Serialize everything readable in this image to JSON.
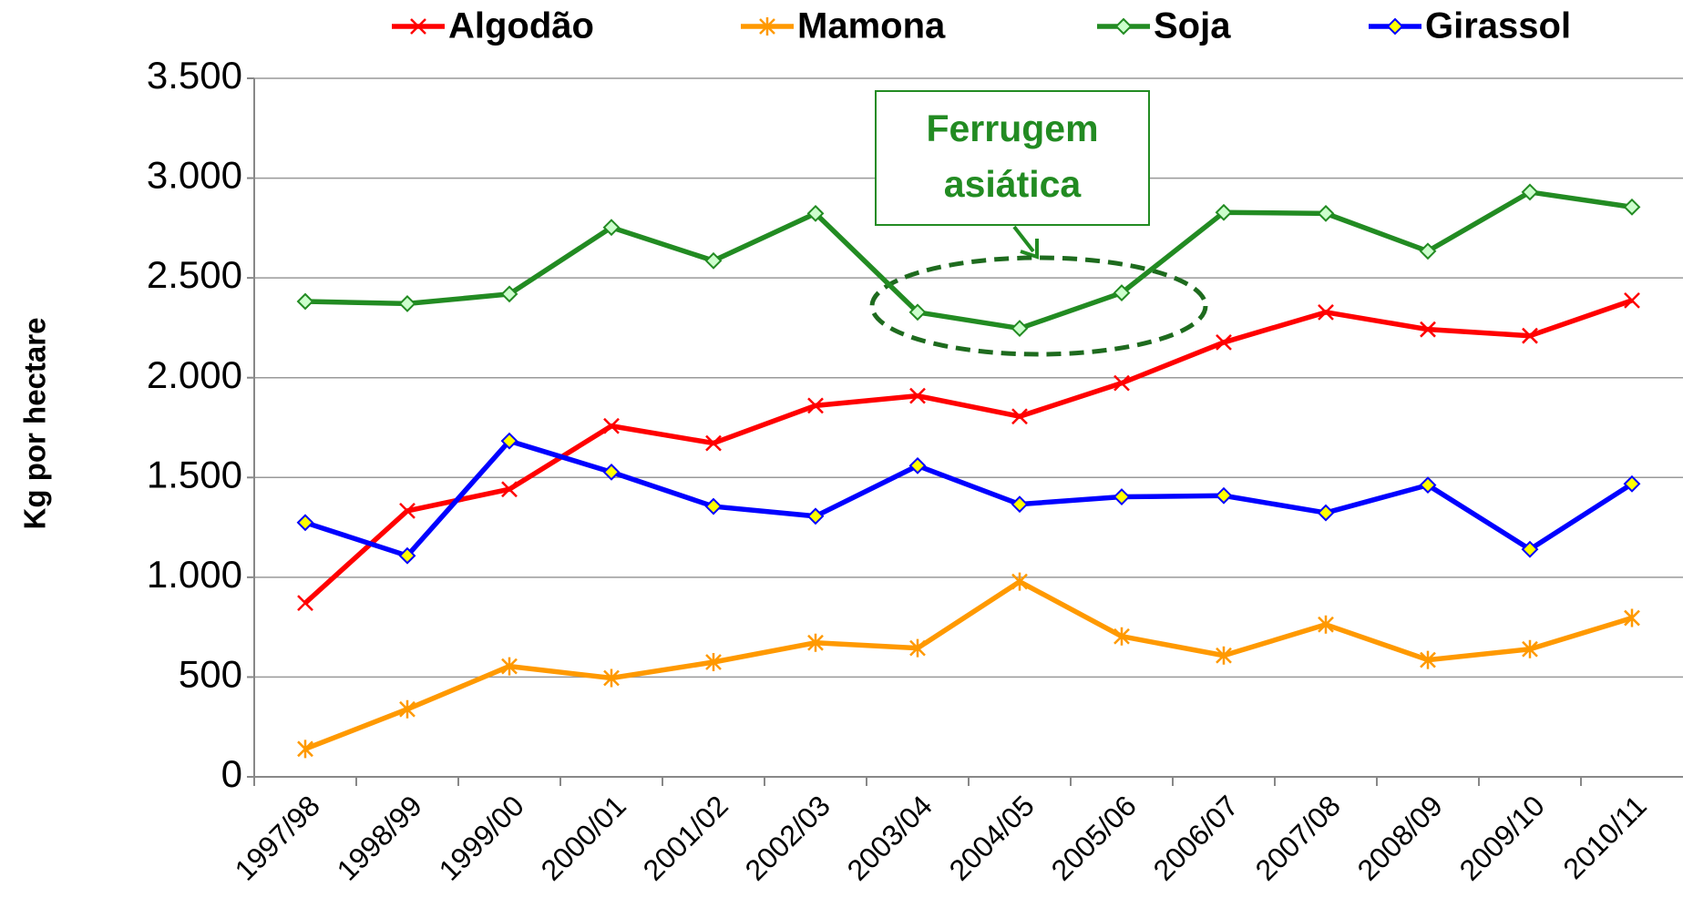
{
  "chart_data": {
    "type": "line",
    "y_label": "Kg por hectare",
    "annotation": [
      "Ferrugem",
      "asiática"
    ],
    "categories": [
      "1997/98",
      "1998/99",
      "1999/00",
      "2000/01",
      "2001/02",
      "2002/03",
      "2003/04",
      "2004/05",
      "2005/06",
      "2006/07",
      "2007/08",
      "2008/09",
      "2009/10",
      "2010/11"
    ],
    "series": [
      {
        "name": "Algodão",
        "color": "#ff0000",
        "marker": "x",
        "values": [
          871,
          1333,
          1441,
          1758,
          1672,
          1860,
          1909,
          1806,
          1973,
          2177,
          2328,
          2242,
          2210,
          2387
        ]
      },
      {
        "name": "Mamona",
        "color": "#ff9900",
        "marker": "star",
        "values": [
          140,
          339,
          554,
          495,
          575,
          672,
          645,
          978,
          704,
          608,
          763,
          586,
          640,
          796
        ]
      },
      {
        "name": "Soja",
        "color": "#228b22",
        "marker": "diamond",
        "marker_fill": "#ccffcc",
        "values": [
          2382,
          2371,
          2419,
          2753,
          2586,
          2823,
          2328,
          2247,
          2425,
          2828,
          2823,
          2634,
          2930,
          2855
        ]
      },
      {
        "name": "Girassol",
        "color": "#0000ff",
        "marker": "diamond",
        "marker_fill": "#ffff00",
        "values": [
          1274,
          1108,
          1683,
          1527,
          1355,
          1306,
          1559,
          1366,
          1403,
          1409,
          1323,
          1462,
          1140,
          1468
        ]
      }
    ],
    "ylim": [
      0,
      3500
    ],
    "yticks": [
      0,
      500,
      {
        "value": 1000,
        "label": "1.000"
      },
      {
        "value": 1500,
        "label": "1.500"
      },
      {
        "value": 2000,
        "label": "2.000"
      },
      {
        "value": 2500,
        "label": "2.500"
      },
      {
        "value": 3000,
        "label": "3.000"
      },
      {
        "value": 3500,
        "label": "3.500"
      }
    ],
    "grid": true,
    "legend": "top"
  }
}
